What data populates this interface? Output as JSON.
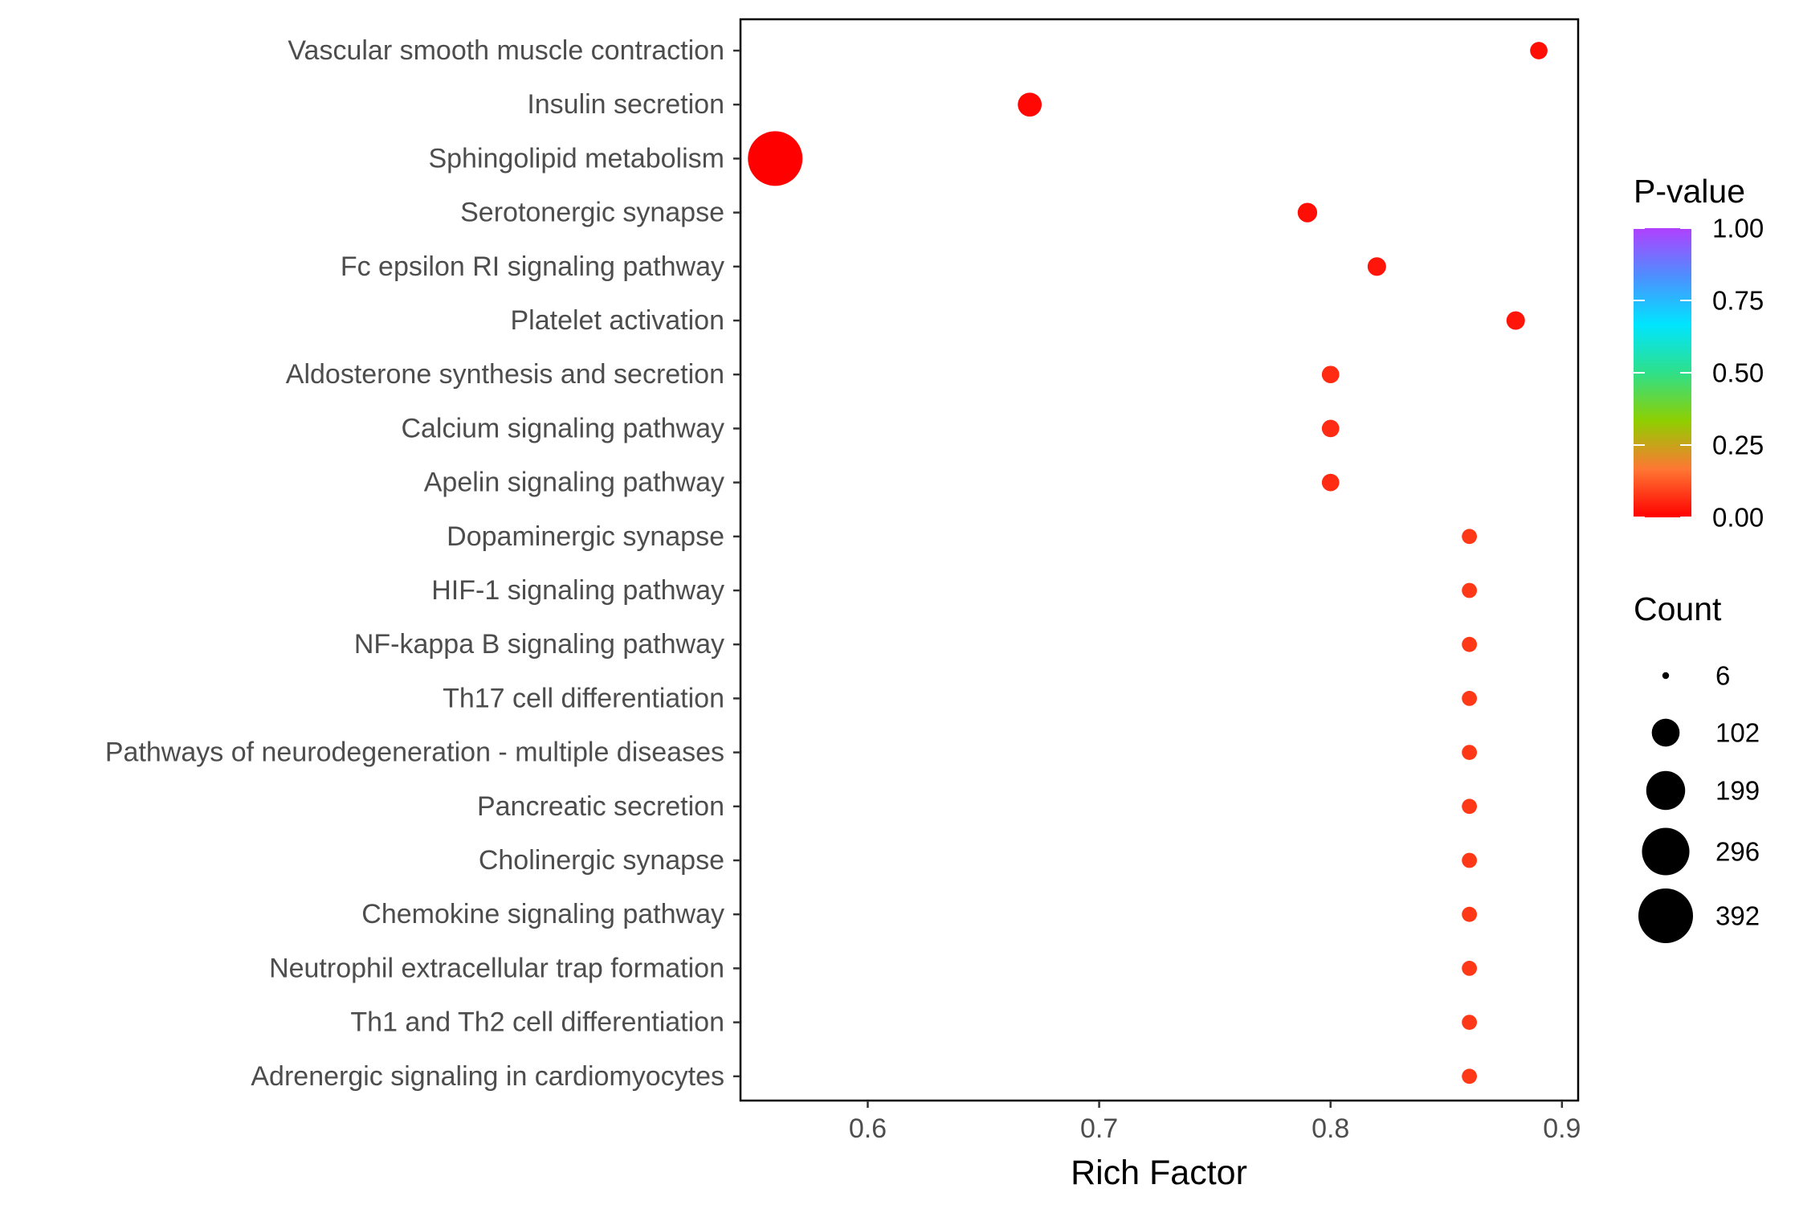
{
  "chart_data": {
    "type": "scatter",
    "xlabel": "Rich Factor",
    "ylabel": "",
    "xlim": [
      0.545,
      0.907
    ],
    "x_ticks": [
      0.6,
      0.7,
      0.8,
      0.9
    ],
    "x_tick_labels": [
      "0.6",
      "0.7",
      "0.8",
      "0.9"
    ],
    "grid": false,
    "categories": [
      "Vascular smooth muscle contraction",
      "Insulin secretion",
      "Sphingolipid metabolism",
      "Serotonergic synapse",
      "Fc epsilon RI signaling pathway",
      "Platelet activation",
      "Aldosterone synthesis and secretion",
      "Calcium signaling pathway",
      "Apelin signaling pathway",
      "Dopaminergic synapse",
      "HIF-1 signaling pathway",
      "NF-kappa B signaling pathway",
      "Th17 cell differentiation",
      "Pathways of neurodegeneration - multiple diseases",
      "Pancreatic secretion",
      "Cholinergic synapse",
      "Chemokine signaling pathway",
      "Neutrophil extracellular trap formation",
      "Th1 and Th2 cell differentiation",
      "Adrenergic signaling in cardiomyocytes"
    ],
    "points": [
      {
        "category": "Vascular smooth muscle contraction",
        "rich_factor": 0.89,
        "count": 40,
        "p_value": 0.02
      },
      {
        "category": "Insulin secretion",
        "rich_factor": 0.67,
        "count": 75,
        "p_value": 0.01
      },
      {
        "category": "Sphingolipid metabolism",
        "rich_factor": 0.56,
        "count": 392,
        "p_value": 0.0
      },
      {
        "category": "Serotonergic synapse",
        "rich_factor": 0.79,
        "count": 50,
        "p_value": 0.02
      },
      {
        "category": "Fc epsilon RI signaling pathway",
        "rich_factor": 0.82,
        "count": 45,
        "p_value": 0.03
      },
      {
        "category": "Platelet activation",
        "rich_factor": 0.88,
        "count": 45,
        "p_value": 0.03
      },
      {
        "category": "Aldosterone synthesis and secretion",
        "rich_factor": 0.8,
        "count": 40,
        "p_value": 0.06
      },
      {
        "category": "Calcium signaling pathway",
        "rich_factor": 0.8,
        "count": 40,
        "p_value": 0.06
      },
      {
        "category": "Apelin signaling pathway",
        "rich_factor": 0.8,
        "count": 40,
        "p_value": 0.06
      },
      {
        "category": "Dopaminergic synapse",
        "rich_factor": 0.86,
        "count": 30,
        "p_value": 0.08
      },
      {
        "category": "HIF-1 signaling pathway",
        "rich_factor": 0.86,
        "count": 30,
        "p_value": 0.08
      },
      {
        "category": "NF-kappa B signaling pathway",
        "rich_factor": 0.86,
        "count": 30,
        "p_value": 0.08
      },
      {
        "category": "Th17 cell differentiation",
        "rich_factor": 0.86,
        "count": 30,
        "p_value": 0.08
      },
      {
        "category": "Pathways of neurodegeneration - multiple diseases",
        "rich_factor": 0.86,
        "count": 30,
        "p_value": 0.08
      },
      {
        "category": "Pancreatic secretion",
        "rich_factor": 0.86,
        "count": 30,
        "p_value": 0.08
      },
      {
        "category": "Cholinergic synapse",
        "rich_factor": 0.86,
        "count": 30,
        "p_value": 0.08
      },
      {
        "category": "Chemokine signaling pathway",
        "rich_factor": 0.86,
        "count": 30,
        "p_value": 0.08
      },
      {
        "category": "Neutrophil extracellular trap formation",
        "rich_factor": 0.86,
        "count": 30,
        "p_value": 0.08
      },
      {
        "category": "Th1 and Th2 cell differentiation",
        "rich_factor": 0.86,
        "count": 30,
        "p_value": 0.08
      },
      {
        "category": "Adrenergic signaling in cardiomyocytes",
        "rich_factor": 0.86,
        "count": 30,
        "p_value": 0.08
      }
    ],
    "color_legend": {
      "title": "P-value",
      "range": [
        0.0,
        1.0
      ],
      "tick_values": [
        0.0,
        0.25,
        0.5,
        0.75,
        1.0
      ],
      "tick_labels": [
        "0.00",
        "0.25",
        "0.50",
        "0.75",
        "1.00"
      ],
      "colors": [
        "#ff0000",
        "#ff7733",
        "#8fcf00",
        "#2ee08a",
        "#00e5ff",
        "#4d8fff",
        "#b040ff"
      ]
    },
    "size_legend": {
      "title": "Count",
      "values": [
        6,
        102,
        199,
        296,
        392
      ],
      "labels": [
        "6",
        "102",
        "199",
        "296",
        "392"
      ],
      "color": "#000000"
    },
    "legend_position": "right"
  }
}
